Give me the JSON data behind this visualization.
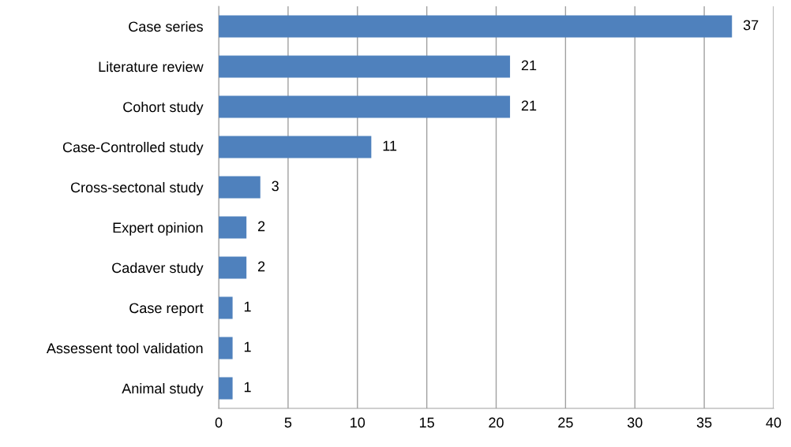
{
  "chart_data": {
    "type": "bar",
    "orientation": "horizontal",
    "categories": [
      "Case series",
      "Literature review",
      "Cohort study",
      "Case-Controlled study",
      "Cross-sectonal study",
      "Expert opinion",
      "Cadaver study",
      "Case report",
      "Assessent tool validation",
      "Animal study"
    ],
    "values": [
      37,
      21,
      21,
      11,
      3,
      2,
      2,
      1,
      1,
      1
    ],
    "color": "#4f81bd",
    "xlim": [
      0,
      40
    ],
    "xticks": [
      0,
      5,
      10,
      15,
      20,
      25,
      30,
      35,
      40
    ],
    "grid": "x",
    "data_labels": true,
    "legend": false
  }
}
